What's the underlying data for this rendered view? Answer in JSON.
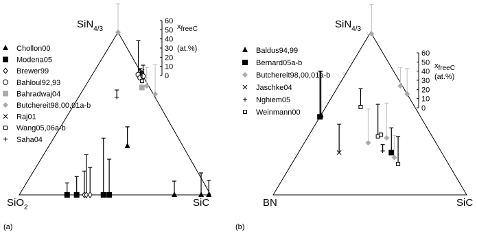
{
  "chart_data": [
    {
      "type": "ternary",
      "panel_label": "(a)",
      "vertices": [
        {
          "label": "SiN",
          "sub": "4/3"
        },
        {
          "label": "SiO",
          "sub": "2"
        },
        {
          "label": "SiC",
          "sub": null
        }
      ],
      "scale_label": {
        "main": "x",
        "sub": "freeC",
        "unit": "(at.%)"
      },
      "clim": [
        0,
        60
      ],
      "cticks": [
        0,
        10,
        20,
        30,
        40,
        50,
        60
      ],
      "series": [
        {
          "name": "Chollon00",
          "marker": "triangle",
          "color": "#000000",
          "sin_frac": [
            0.3,
            0,
            0,
            0
          ],
          "sic_frac": [
            0.41,
            0.81,
            0.95,
            0.99
          ],
          "free_c": [
            21,
            15,
            24,
            16
          ]
        },
        {
          "name": "Modena05",
          "marker": "square",
          "color": "#000000",
          "sin_frac": [
            0,
            0,
            0,
            0
          ],
          "sic_frac": [
            0.25,
            0.3,
            0.44,
            0.47
          ],
          "free_c": [
            13,
            20,
            62,
            39
          ]
        },
        {
          "name": "Brewer99",
          "marker": "diamond-open",
          "color": "#000000",
          "sin_frac": [
            0,
            0,
            0
          ],
          "sic_frac": [
            0.34,
            0.35,
            0.37
          ],
          "free_c": [
            26,
            44,
            30
          ]
        },
        {
          "name": "Bahloul92,93",
          "marker": "circle-open",
          "color": "#000000",
          "sin_frac": [
            0.74,
            0.72,
            0.73
          ],
          "sic_frac": [
            0.24,
            0.26,
            0.27
          ],
          "free_c": [
            37,
            10,
            12
          ]
        },
        {
          "name": "Bahradwaj04",
          "marker": "square",
          "color": "#aaaaaa",
          "sin_frac": [
            0.66
          ],
          "sic_frac": [
            0.3
          ],
          "free_c": [
            6
          ]
        },
        {
          "name": "Butchereit98,00,01a-b",
          "marker": "diamond",
          "color": "#aaaaaa",
          "sin_frac": [
            1,
            0.67,
            0.62
          ],
          "sic_frac": [
            0,
            0.32,
            0.39
          ],
          "free_c": [
            31,
            20,
            32
          ]
        },
        {
          "name": "Raj01",
          "marker": "x",
          "color": "#000000",
          "sin_frac": [
            0.76
          ],
          "sic_frac": [
            0.25
          ],
          "free_c": [
            null
          ]
        },
        {
          "name": "Wang05,06a-b",
          "marker": "square-open",
          "color": "#000000",
          "sin_frac": [
            0.7
          ],
          "sic_frac": [
            0.28
          ],
          "free_c": [
            10
          ]
        },
        {
          "name": "Saha04",
          "marker": "plus",
          "color": "#000000",
          "sin_frac": [
            0.6
          ],
          "sic_frac": [
            0.2
          ],
          "free_c": [
            8
          ]
        }
      ]
    },
    {
      "type": "ternary",
      "panel_label": "(b)",
      "vertices": [
        {
          "label": "SiN",
          "sub": "4/3"
        },
        {
          "label": "BN",
          "sub": null
        },
        {
          "label": "SiC",
          "sub": null
        }
      ],
      "scale_label": {
        "main": "x",
        "sub": "freeC",
        "unit": "(at.%)"
      },
      "clim": [
        0,
        60
      ],
      "cticks": [
        0,
        10,
        20,
        30,
        40,
        50,
        60
      ],
      "series": [
        {
          "name": "Baldus94,99",
          "marker": "triangle",
          "color": "#000000",
          "sin_frac": [
            0.49
          ],
          "sic_frac": [
            0.0
          ],
          "free_c": [
            48
          ]
        },
        {
          "name": "Bernard05a-b",
          "marker": "square",
          "color": "#000000",
          "sin_frac": [
            0.48,
            0.26
          ],
          "sic_frac": [
            0.0,
            0.48
          ],
          "free_c": [
            50,
            27
          ]
        },
        {
          "name": "Butchereit98,00,01a-b",
          "marker": "diamond",
          "color": "#aaaaaa",
          "sin_frac": [
            0.99,
            0.32,
            0.67,
            0.62,
            0.35,
            0.23
          ],
          "sic_frac": [
            0.01,
            0.33,
            0.32,
            0.38,
            0.41,
            0.51
          ],
          "free_c": [
            32,
            37,
            20,
            28,
            38,
            24
          ]
        },
        {
          "name": "Jaschke04",
          "marker": "x",
          "color": "#000000",
          "sin_frac": [
            0.26
          ],
          "sic_frac": [
            0.21
          ],
          "free_c": [
            31
          ]
        },
        {
          "name": "Nghiem05",
          "marker": "plus",
          "color": "#000000",
          "sin_frac": [
            0.27
          ],
          "sic_frac": [
            0.43
          ],
          "free_c": [
            7
          ]
        },
        {
          "name": "Weinmann00",
          "marker": "square-open",
          "color": "#000000",
          "sin_frac": [
            0.54,
            0.36,
            0.37,
            0.19
          ],
          "sic_frac": [
            0.18,
            0.36,
            0.37,
            0.55
          ],
          "free_c": [
            20,
            35,
            null,
            30
          ]
        }
      ]
    }
  ]
}
